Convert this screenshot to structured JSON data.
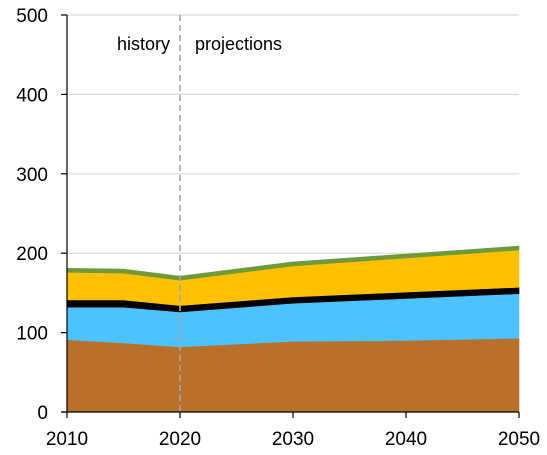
{
  "chart_data": {
    "type": "area",
    "stacked": true,
    "x": [
      2010,
      2015,
      2020,
      2030,
      2040,
      2050
    ],
    "xlim": [
      2010,
      2050
    ],
    "ylim": [
      0,
      500
    ],
    "x_ticks": [
      "2010",
      "2020",
      "2030",
      "2040",
      "2050"
    ],
    "y_ticks": [
      "0",
      "100",
      "200",
      "300",
      "400",
      "500"
    ],
    "grid": "horizontal",
    "legend": "none",
    "annotations": {
      "divider_year": 2020,
      "history_label": "history",
      "projections_label": "projections"
    },
    "series": [
      {
        "color": "#b8702a",
        "values": [
          91,
          87,
          82,
          89,
          90,
          93
        ]
      },
      {
        "color": "#4cc3ff",
        "values": [
          41,
          45,
          44,
          48,
          53,
          56
        ]
      },
      {
        "color": "#000000",
        "values": [
          9,
          9,
          8,
          8,
          8,
          8
        ]
      },
      {
        "color": "#ffc000",
        "values": [
          35,
          34,
          32,
          39,
          43,
          47
        ]
      },
      {
        "color": "#6e9a3c",
        "values": [
          5,
          5,
          5,
          5,
          5,
          5
        ]
      }
    ]
  }
}
